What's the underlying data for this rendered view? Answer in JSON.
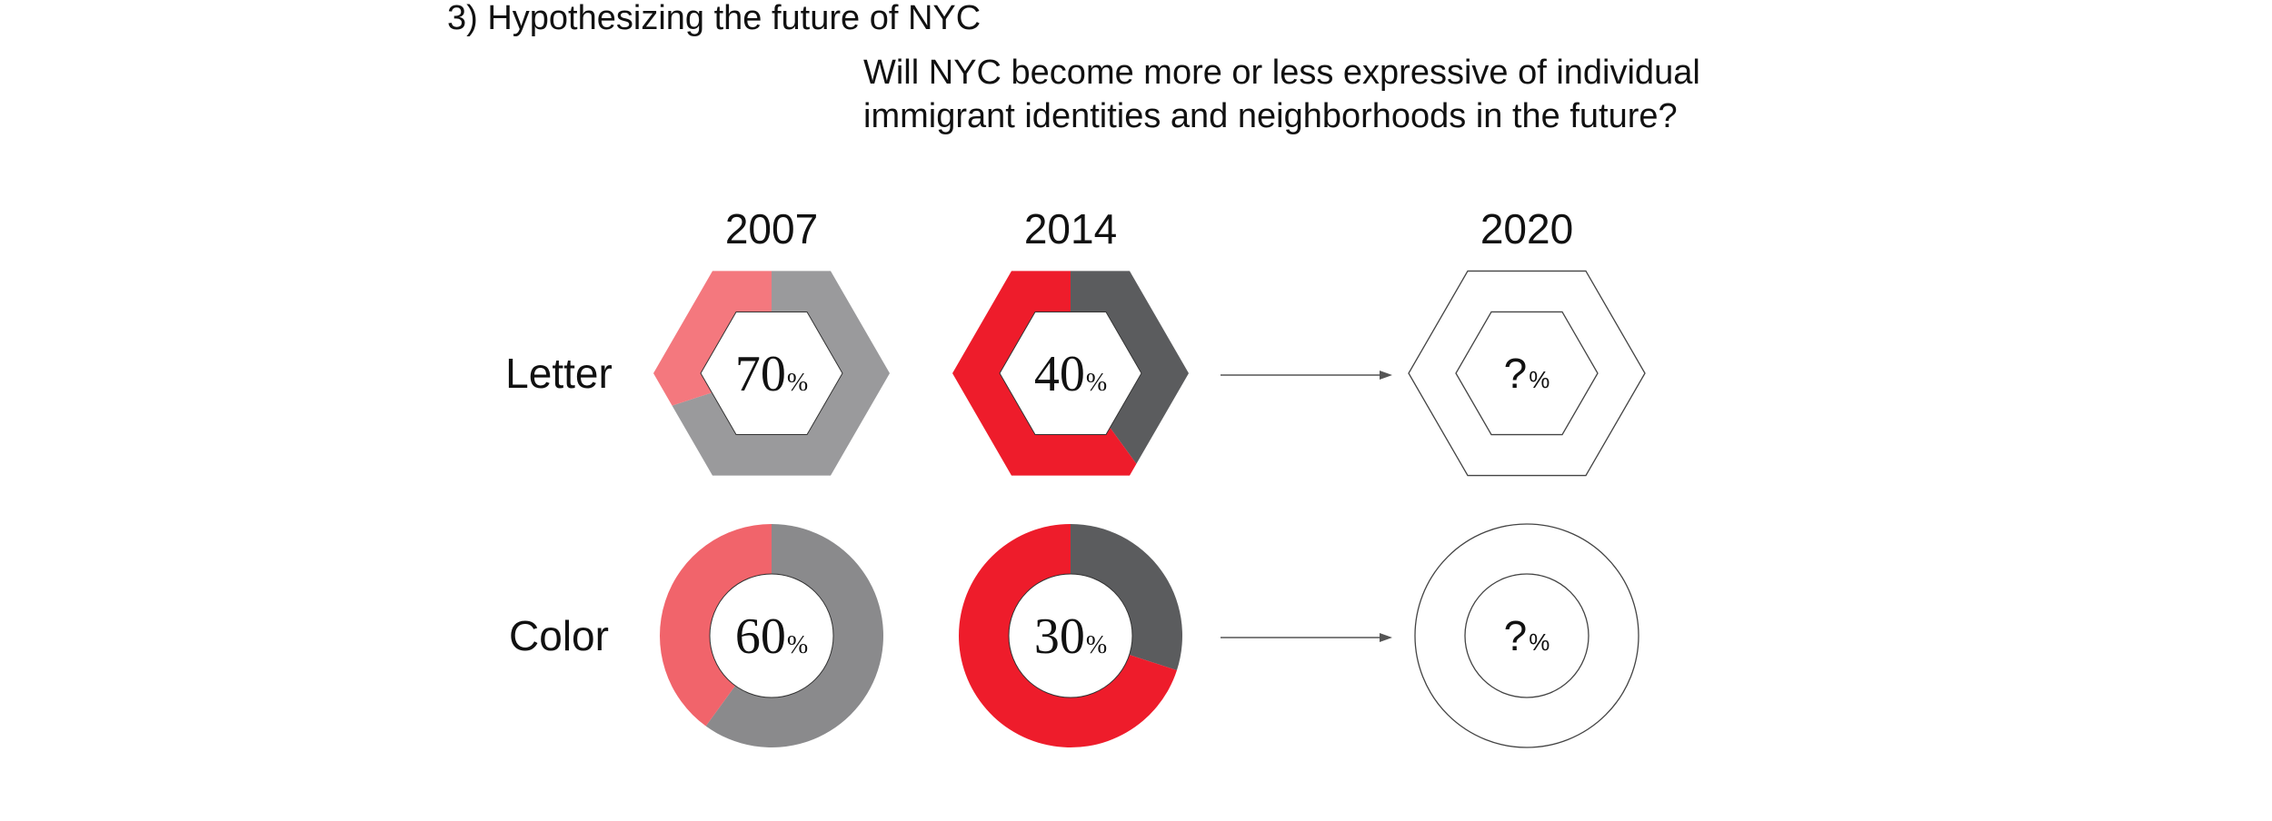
{
  "section_heading": "3) Hypothesizing the future of NYC",
  "question_lines": [
    "Will NYC become more or less expressive of individual",
    "immigrant identities and neighborhoods in the future?"
  ],
  "chart_data": {
    "type": "donut-matrix",
    "title": "Will NYC become more or less expressive of individual immigrant identities and neighborhoods in the future?",
    "columns": [
      "2007",
      "2014",
      "2020"
    ],
    "rows": [
      {
        "label": "Letter",
        "shape": "hexagon",
        "cells": [
          {
            "year": "2007",
            "value": 70,
            "display": "70",
            "unit": "%",
            "accent": "#f4787e",
            "rest": "#9a9a9c"
          },
          {
            "year": "2014",
            "value": 40,
            "display": "40",
            "unit": "%",
            "accent": "#ee1c2b",
            "rest": "#5b5c5e"
          },
          {
            "year": "2020",
            "value": null,
            "display": "?",
            "unit": "%"
          }
        ]
      },
      {
        "label": "Color",
        "shape": "circle",
        "cells": [
          {
            "year": "2007",
            "value": 60,
            "display": "60",
            "unit": "%",
            "accent": "#f1646b",
            "rest": "#8a8a8c"
          },
          {
            "year": "2014",
            "value": 30,
            "display": "30",
            "unit": "%",
            "accent": "#ee1c2b",
            "rest": "#5b5c5e"
          },
          {
            "year": "2020",
            "value": null,
            "display": "?",
            "unit": "%"
          }
        ]
      }
    ],
    "arrows": [
      "2014 to 2020 (Letter)",
      "2014 to 2020 (Color)"
    ]
  }
}
